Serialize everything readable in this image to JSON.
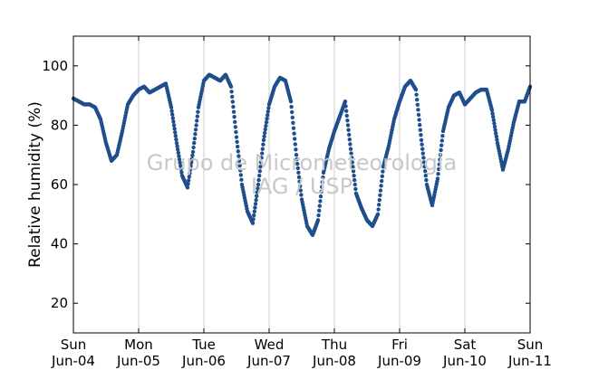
{
  "chart_data": {
    "type": "scatter",
    "title": "",
    "xlabel": "",
    "ylabel": "Relative humidity (%)",
    "xlim": [
      "2017-06-04 00:00",
      "2017-06-11 00:00"
    ],
    "ylim": [
      10,
      110
    ],
    "yticks": [
      20,
      40,
      60,
      80,
      100
    ],
    "xtick_labels": [
      {
        "day": "Sun",
        "date": "Jun-04"
      },
      {
        "day": "Mon",
        "date": "Jun-05"
      },
      {
        "day": "Tue",
        "date": "Jun-06"
      },
      {
        "day": "Wed",
        "date": "Jun-07"
      },
      {
        "day": "Thu",
        "date": "Jun-08"
      },
      {
        "day": "Fri",
        "date": "Jun-09"
      },
      {
        "day": "Sat",
        "date": "Jun-10"
      },
      {
        "day": "Sun",
        "date": "Jun-11"
      }
    ],
    "grid": "vertical",
    "marker_color": "#1f4e8c",
    "watermark": [
      "Grupo de Micrometeorologia",
      "IAG / USP"
    ],
    "series": [
      {
        "points": [
          [
            "2017-06-04 00:00",
            89
          ],
          [
            "2017-06-04 02:00",
            88
          ],
          [
            "2017-06-04 04:00",
            87
          ],
          [
            "2017-06-04 06:00",
            87
          ],
          [
            "2017-06-04 08:00",
            86
          ],
          [
            "2017-06-04 10:00",
            82
          ],
          [
            "2017-06-04 12:00",
            74
          ],
          [
            "2017-06-04 14:00",
            68
          ],
          [
            "2017-06-04 16:00",
            70
          ],
          [
            "2017-06-04 18:00",
            78
          ],
          [
            "2017-06-04 20:00",
            87
          ],
          [
            "2017-06-04 22:00",
            90
          ],
          [
            "2017-06-05 00:00",
            92
          ],
          [
            "2017-06-05 02:00",
            93
          ],
          [
            "2017-06-05 04:00",
            91
          ],
          [
            "2017-06-05 06:00",
            92
          ],
          [
            "2017-06-05 08:00",
            93
          ],
          [
            "2017-06-05 10:00",
            94
          ],
          [
            "2017-06-05 12:00",
            86
          ],
          [
            "2017-06-05 14:00",
            74
          ],
          [
            "2017-06-05 16:00",
            63
          ],
          [
            "2017-06-05 18:00",
            59
          ],
          [
            "2017-06-05 20:00",
            71
          ],
          [
            "2017-06-05 22:00",
            86
          ],
          [
            "2017-06-06 00:00",
            95
          ],
          [
            "2017-06-06 02:00",
            97
          ],
          [
            "2017-06-06 04:00",
            96
          ],
          [
            "2017-06-06 06:00",
            95
          ],
          [
            "2017-06-06 08:00",
            97
          ],
          [
            "2017-06-06 10:00",
            93
          ],
          [
            "2017-06-06 12:00",
            76
          ],
          [
            "2017-06-06 14:00",
            60
          ],
          [
            "2017-06-06 16:00",
            51
          ],
          [
            "2017-06-06 18:00",
            47
          ],
          [
            "2017-06-06 20:00",
            60
          ],
          [
            "2017-06-06 22:00",
            75
          ],
          [
            "2017-06-07 00:00",
            87
          ],
          [
            "2017-06-07 02:00",
            93
          ],
          [
            "2017-06-07 04:00",
            96
          ],
          [
            "2017-06-07 06:00",
            95
          ],
          [
            "2017-06-07 08:00",
            88
          ],
          [
            "2017-06-07 10:00",
            70
          ],
          [
            "2017-06-07 12:00",
            55
          ],
          [
            "2017-06-07 14:00",
            46
          ],
          [
            "2017-06-07 16:00",
            43
          ],
          [
            "2017-06-07 18:00",
            48
          ],
          [
            "2017-06-07 20:00",
            64
          ],
          [
            "2017-06-07 22:00",
            72
          ],
          [
            "2017-06-08 00:00",
            78
          ],
          [
            "2017-06-08 02:00",
            83
          ],
          [
            "2017-06-08 04:00",
            88
          ],
          [
            "2017-06-08 06:00",
            72
          ],
          [
            "2017-06-08 08:00",
            57
          ],
          [
            "2017-06-08 10:00",
            52
          ],
          [
            "2017-06-08 12:00",
            48
          ],
          [
            "2017-06-08 14:00",
            46
          ],
          [
            "2017-06-08 16:00",
            50
          ],
          [
            "2017-06-08 18:00",
            66
          ],
          [
            "2017-06-08 20:00",
            73
          ],
          [
            "2017-06-08 22:00",
            82
          ],
          [
            "2017-06-09 00:00",
            88
          ],
          [
            "2017-06-09 02:00",
            93
          ],
          [
            "2017-06-09 04:00",
            95
          ],
          [
            "2017-06-09 06:00",
            92
          ],
          [
            "2017-06-09 08:00",
            75
          ],
          [
            "2017-06-09 10:00",
            60
          ],
          [
            "2017-06-09 12:00",
            53
          ],
          [
            "2017-06-09 14:00",
            62
          ],
          [
            "2017-06-09 16:00",
            78
          ],
          [
            "2017-06-09 18:00",
            86
          ],
          [
            "2017-06-09 20:00",
            90
          ],
          [
            "2017-06-09 22:00",
            91
          ],
          [
            "2017-06-10 00:00",
            87
          ],
          [
            "2017-06-10 02:00",
            89
          ],
          [
            "2017-06-10 04:00",
            91
          ],
          [
            "2017-06-10 06:00",
            92
          ],
          [
            "2017-06-10 08:00",
            92
          ],
          [
            "2017-06-10 10:00",
            85
          ],
          [
            "2017-06-10 12:00",
            74
          ],
          [
            "2017-06-10 14:00",
            65
          ],
          [
            "2017-06-10 16:00",
            72
          ],
          [
            "2017-06-10 18:00",
            81
          ],
          [
            "2017-06-10 20:00",
            88
          ],
          [
            "2017-06-10 22:00",
            88
          ],
          [
            "2017-06-11 00:00",
            93
          ]
        ]
      }
    ]
  }
}
